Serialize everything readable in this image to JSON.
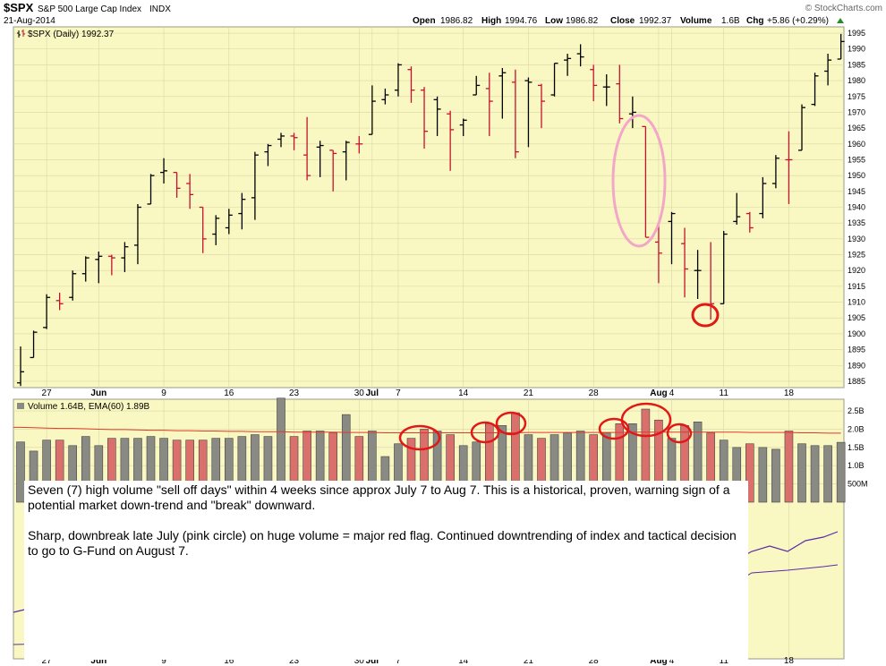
{
  "header": {
    "symbol": "$SPX",
    "name": "S&P 500 Large Cap Index",
    "exchange": "INDX",
    "date": "21-Aug-2014",
    "brand": "© StockCharts.com",
    "open_label": "Open",
    "open": "1986.82",
    "high_label": "High",
    "high": "1994.76",
    "low_label": "Low",
    "low": "1986.82",
    "close_label": "Close",
    "close": "1992.37",
    "volume_label": "Volume",
    "volume": "1.6B",
    "chg_label": "Chg",
    "chg": "+5.86 (+0.29%)"
  },
  "price_legend": "$SPX (Daily) 1992.37",
  "volume_legend": "Volume 1.64B, EMA(60) 1.89B",
  "annotation": {
    "p1": "Seven (7) high volume \"sell off days\" within 4 weeks since approx July 7 to Aug 7.    This is a historical, proven, warning sign of a potential market down-trend and \"break\" downward.",
    "p2": "Sharp, downbreak late July (pink circle) on huge volume = major red flag.   Continued downtrending of index and tactical decision to go to G-Fund on August 7."
  },
  "colors": {
    "panel_bg": "#faf8c2",
    "grid": "#d9d6a6",
    "up_bar": "#000000",
    "down_bar": "#c8102e",
    "vol_up": "#8a8a84",
    "vol_down": "#d9706c",
    "ema_line": "#e23a2a",
    "purple_line": "#5b2aa8",
    "highlight_red": "#e01818",
    "highlight_pink": "#f2a6c8"
  },
  "chart_data": {
    "type": "ohlc",
    "price_ylim": [
      1883,
      1997
    ],
    "price_yticks": [
      1885,
      1890,
      1895,
      1900,
      1905,
      1910,
      1915,
      1920,
      1925,
      1930,
      1935,
      1940,
      1945,
      1950,
      1955,
      1960,
      1965,
      1970,
      1975,
      1980,
      1985,
      1990,
      1995
    ],
    "volume_ylim": [
      0,
      2.82
    ],
    "volume_ytick_labels": [
      {
        "v": 2.5,
        "label": "2.5B"
      },
      {
        "v": 2.0,
        "label": "2.0B"
      },
      {
        "v": 1.5,
        "label": "1.5B"
      },
      {
        "v": 1.0,
        "label": "1.0B"
      },
      {
        "v": 0.5,
        "label": "500M"
      }
    ],
    "x_labels": [
      {
        "i": 2,
        "label": "27",
        "bold": false
      },
      {
        "i": 6,
        "label": "Jun",
        "bold": true
      },
      {
        "i": 11,
        "label": "9",
        "bold": false
      },
      {
        "i": 16,
        "label": "16",
        "bold": false
      },
      {
        "i": 21,
        "label": "23",
        "bold": false
      },
      {
        "i": 26,
        "label": "30",
        "bold": false
      },
      {
        "i": 27,
        "label": "Jul",
        "bold": true
      },
      {
        "i": 29,
        "label": "7",
        "bold": false
      },
      {
        "i": 34,
        "label": "14",
        "bold": false
      },
      {
        "i": 39,
        "label": "21",
        "bold": false
      },
      {
        "i": 44,
        "label": "28",
        "bold": false
      },
      {
        "i": 49,
        "label": "Aug",
        "bold": true
      },
      {
        "i": 50,
        "label": "4",
        "bold": false
      },
      {
        "i": 54,
        "label": "11",
        "bold": false
      },
      {
        "i": 59,
        "label": "18",
        "bold": false
      }
    ],
    "bars": [
      {
        "o": 1884.5,
        "h": 1896.0,
        "l": 1883.5,
        "c": 1888.0,
        "v": 1.65,
        "d": 0
      },
      {
        "o": 1892.5,
        "h": 1901.0,
        "l": 1892.5,
        "c": 1900.5,
        "v": 1.4,
        "d": 0
      },
      {
        "o": 1902.0,
        "h": 1912.5,
        "l": 1901.5,
        "c": 1911.5,
        "v": 1.7,
        "d": 0
      },
      {
        "o": 1910.5,
        "h": 1913.0,
        "l": 1907.5,
        "c": 1909.5,
        "v": 1.7,
        "d": 1
      },
      {
        "o": 1911.5,
        "h": 1920.0,
        "l": 1910.5,
        "c": 1919.0,
        "v": 1.55,
        "d": 0
      },
      {
        "o": 1919.0,
        "h": 1924.5,
        "l": 1916.5,
        "c": 1924.0,
        "v": 1.8,
        "d": 0
      },
      {
        "o": 1923.5,
        "h": 1926.0,
        "l": 1916.0,
        "c": 1924.5,
        "v": 1.55,
        "d": 0
      },
      {
        "o": 1924.5,
        "h": 1925.0,
        "l": 1918.5,
        "c": 1924.0,
        "v": 1.75,
        "d": 1
      },
      {
        "o": 1924.0,
        "h": 1929.0,
        "l": 1919.5,
        "c": 1927.5,
        "v": 1.75,
        "d": 0
      },
      {
        "o": 1928.0,
        "h": 1941.0,
        "l": 1922.0,
        "c": 1940.0,
        "v": 1.75,
        "d": 0
      },
      {
        "o": 1941.0,
        "h": 1950.5,
        "l": 1941.0,
        "c": 1950.0,
        "v": 1.8,
        "d": 0
      },
      {
        "o": 1951.0,
        "h": 1955.5,
        "l": 1947.5,
        "c": 1951.5,
        "v": 1.75,
        "d": 0
      },
      {
        "o": 1951.0,
        "h": 1951.0,
        "l": 1943.0,
        "c": 1946.0,
        "v": 1.7,
        "d": 1
      },
      {
        "o": 1947.5,
        "h": 1950.5,
        "l": 1939.5,
        "c": 1944.0,
        "v": 1.7,
        "d": 1
      },
      {
        "o": 1940.0,
        "h": 1940.0,
        "l": 1925.5,
        "c": 1930.0,
        "v": 1.7,
        "d": 1
      },
      {
        "o": 1931.5,
        "h": 1937.5,
        "l": 1928.0,
        "c": 1936.5,
        "v": 1.75,
        "d": 0
      },
      {
        "o": 1933.5,
        "h": 1939.5,
        "l": 1931.5,
        "c": 1937.5,
        "v": 1.75,
        "d": 0
      },
      {
        "o": 1938.0,
        "h": 1944.5,
        "l": 1933.0,
        "c": 1942.5,
        "v": 1.8,
        "d": 0
      },
      {
        "o": 1943.0,
        "h": 1957.5,
        "l": 1936.0,
        "c": 1956.5,
        "v": 1.85,
        "d": 0
      },
      {
        "o": 1957.5,
        "h": 1960.0,
        "l": 1953.0,
        "c": 1959.5,
        "v": 1.8,
        "d": 0
      },
      {
        "o": 1961.5,
        "h": 1963.5,
        "l": 1959.0,
        "c": 1962.5,
        "v": 2.85,
        "d": 0
      },
      {
        "o": 1962.5,
        "h": 1963.5,
        "l": 1958.0,
        "c": 1962.0,
        "v": 1.8,
        "d": 1
      },
      {
        "o": 1956.5,
        "h": 1968.5,
        "l": 1948.5,
        "c": 1950.0,
        "v": 1.95,
        "d": 1
      },
      {
        "o": 1959.0,
        "h": 1961.0,
        "l": 1949.5,
        "c": 1959.5,
        "v": 1.95,
        "d": 0
      },
      {
        "o": 1958.0,
        "h": 1958.0,
        "l": 1945.0,
        "c": 1957.0,
        "v": 1.9,
        "d": 1
      },
      {
        "o": 1957.5,
        "h": 1961.0,
        "l": 1948.5,
        "c": 1960.5,
        "v": 2.4,
        "d": 0
      },
      {
        "o": 1960.0,
        "h": 1962.5,
        "l": 1957.0,
        "c": 1960.0,
        "v": 1.8,
        "d": 1
      },
      {
        "o": 1963.0,
        "h": 1978.5,
        "l": 1963.0,
        "c": 1973.5,
        "v": 1.95,
        "d": 0
      },
      {
        "o": 1974.0,
        "h": 1977.5,
        "l": 1972.5,
        "c": 1975.5,
        "v": 1.25,
        "d": 0
      },
      {
        "o": 1977.0,
        "h": 1985.5,
        "l": 1975.0,
        "c": 1985.0,
        "v": 1.6,
        "d": 0
      },
      {
        "o": 1983.5,
        "h": 1984.5,
        "l": 1973.0,
        "c": 1977.0,
        "v": 1.75,
        "d": 1
      },
      {
        "o": 1977.0,
        "h": 1978.0,
        "l": 1958.5,
        "c": 1964.0,
        "v": 2.0,
        "d": 1
      },
      {
        "o": 1974.0,
        "h": 1975.0,
        "l": 1962.5,
        "c": 1971.0,
        "v": 1.95,
        "d": 0
      },
      {
        "o": 1969.5,
        "h": 1970.5,
        "l": 1951.5,
        "c": 1964.5,
        "v": 1.85,
        "d": 1
      },
      {
        "o": 1966.0,
        "h": 1968.0,
        "l": 1962.5,
        "c": 1967.5,
        "v": 1.55,
        "d": 0
      },
      {
        "o": 1975.5,
        "h": 1981.5,
        "l": 1975.5,
        "c": 1978.5,
        "v": 1.65,
        "d": 0
      },
      {
        "o": 1977.5,
        "h": 1982.5,
        "l": 1962.5,
        "c": 1973.5,
        "v": 2.15,
        "d": 1
      },
      {
        "o": 1981.5,
        "h": 1984.0,
        "l": 1968.0,
        "c": 1982.5,
        "v": 2.1,
        "d": 0
      },
      {
        "o": 1979.5,
        "h": 1983.5,
        "l": 1955.5,
        "c": 1957.5,
        "v": 2.45,
        "d": 1
      },
      {
        "o": 1980.0,
        "h": 1981.0,
        "l": 1959.0,
        "c": 1979.5,
        "v": 1.85,
        "d": 0
      },
      {
        "o": 1978.5,
        "h": 1979.0,
        "l": 1965.0,
        "c": 1973.5,
        "v": 1.75,
        "d": 1
      },
      {
        "o": 1975.5,
        "h": 1985.5,
        "l": 1975.0,
        "c": 1985.5,
        "v": 1.85,
        "d": 0
      },
      {
        "o": 1986.5,
        "h": 1988.5,
        "l": 1981.5,
        "c": 1987.0,
        "v": 1.9,
        "d": 0
      },
      {
        "o": 1988.5,
        "h": 1991.5,
        "l": 1984.5,
        "c": 1987.5,
        "v": 1.95,
        "d": 0
      },
      {
        "o": 1983.5,
        "h": 1985.0,
        "l": 1973.5,
        "c": 1978.5,
        "v": 1.85,
        "d": 1
      },
      {
        "o": 1978.0,
        "h": 1982.0,
        "l": 1972.0,
        "c": 1978.0,
        "v": 1.9,
        "d": 0
      },
      {
        "o": 1979.0,
        "h": 1985.0,
        "l": 1966.5,
        "c": 1968.0,
        "v": 2.15,
        "d": 1
      },
      {
        "o": 1969.5,
        "h": 1975.0,
        "l": 1965.0,
        "c": 1970.0,
        "v": 2.15,
        "d": 0
      },
      {
        "o": 1965.5,
        "h": 1965.5,
        "l": 1930.5,
        "c": 1930.5,
        "v": 2.55,
        "d": 1
      },
      {
        "o": 1929.0,
        "h": 1935.5,
        "l": 1916.0,
        "c": 1925.5,
        "v": 2.25,
        "d": 1
      },
      {
        "o": 1935.5,
        "h": 1938.5,
        "l": 1922.0,
        "c": 1938.0,
        "v": 1.75,
        "d": 0
      },
      {
        "o": 1928.5,
        "h": 1933.5,
        "l": 1911.5,
        "c": 1920.5,
        "v": 2.1,
        "d": 1
      },
      {
        "o": 1920.0,
        "h": 1926.5,
        "l": 1911.0,
        "c": 1920.0,
        "v": 2.2,
        "d": 0
      },
      {
        "o": 1909.0,
        "h": 1929.0,
        "l": 1904.5,
        "c": 1909.5,
        "v": 1.9,
        "d": 1
      },
      {
        "o": 1909.5,
        "h": 1932.5,
        "l": 1909.5,
        "c": 1931.5,
        "v": 1.7,
        "d": 0
      },
      {
        "o": 1935.5,
        "h": 1944.5,
        "l": 1934.5,
        "c": 1937.0,
        "v": 1.5,
        "d": 0
      },
      {
        "o": 1938.0,
        "h": 1938.5,
        "l": 1932.0,
        "c": 1933.5,
        "v": 1.6,
        "d": 1
      },
      {
        "o": 1938.0,
        "h": 1949.5,
        "l": 1936.5,
        "c": 1947.5,
        "v": 1.5,
        "d": 0
      },
      {
        "o": 1947.5,
        "h": 1956.5,
        "l": 1946.0,
        "c": 1955.5,
        "v": 1.45,
        "d": 0
      },
      {
        "o": 1955.0,
        "h": 1964.0,
        "l": 1941.0,
        "c": 1955.0,
        "v": 1.95,
        "d": 1
      },
      {
        "o": 1958.0,
        "h": 1972.5,
        "l": 1958.0,
        "c": 1971.5,
        "v": 1.6,
        "d": 0
      },
      {
        "o": 1972.5,
        "h": 1982.5,
        "l": 1972.0,
        "c": 1981.5,
        "v": 1.55,
        "d": 0
      },
      {
        "o": 1983.0,
        "h": 1988.5,
        "l": 1978.5,
        "c": 1986.5,
        "v": 1.55,
        "d": 0
      },
      {
        "o": 1986.82,
        "h": 1994.76,
        "l": 1986.82,
        "c": 1992.37,
        "v": 1.64,
        "d": 0
      }
    ],
    "ema60": [
      2.05,
      2.04,
      2.03,
      2.02,
      2.02,
      2.01,
      2.0,
      1.99,
      1.99,
      1.98,
      1.97,
      1.97,
      1.96,
      1.96,
      1.95,
      1.95,
      1.94,
      1.94,
      1.93,
      1.93,
      1.93,
      1.92,
      1.92,
      1.92,
      1.92,
      1.91,
      1.91,
      1.91,
      1.9,
      1.9,
      1.9,
      1.9,
      1.9,
      1.9,
      1.9,
      1.9,
      1.9,
      1.9,
      1.9,
      1.91,
      1.91,
      1.91,
      1.91,
      1.91,
      1.91,
      1.91,
      1.91,
      1.92,
      1.92,
      1.92,
      1.92,
      1.92,
      1.92,
      1.92,
      1.92,
      1.92,
      1.91,
      1.91,
      1.91,
      1.91,
      1.9,
      1.9,
      1.89,
      1.89
    ]
  }
}
